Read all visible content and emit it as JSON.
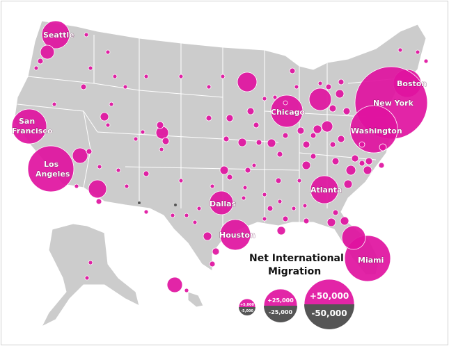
{
  "legend": {
    "title_line1": "Net International",
    "title_line2": "Migration",
    "items": [
      {
        "positive": "+5,000",
        "negative": "-5,000"
      },
      {
        "positive": "+25,000",
        "negative": "-25,000"
      },
      {
        "positive": "+50,000",
        "negative": "-50,000"
      }
    ]
  },
  "colors": {
    "positive": "#e0129f",
    "negative": "#555555",
    "land": "#cccccc",
    "border": "#ffffff"
  },
  "cities": {
    "seattle": "Seattle",
    "san_francisco_1": "San",
    "san_francisco_2": "Francisco",
    "los_angeles_1": "Los",
    "los_angeles_2": "Angeles",
    "chicago": "Chicago",
    "boston": "Boston",
    "new_york": "New York",
    "washington": "Washington",
    "atlanta": "Atlanta",
    "dallas": "Dallas",
    "houston": "Houston",
    "miami": "Miami"
  }
}
